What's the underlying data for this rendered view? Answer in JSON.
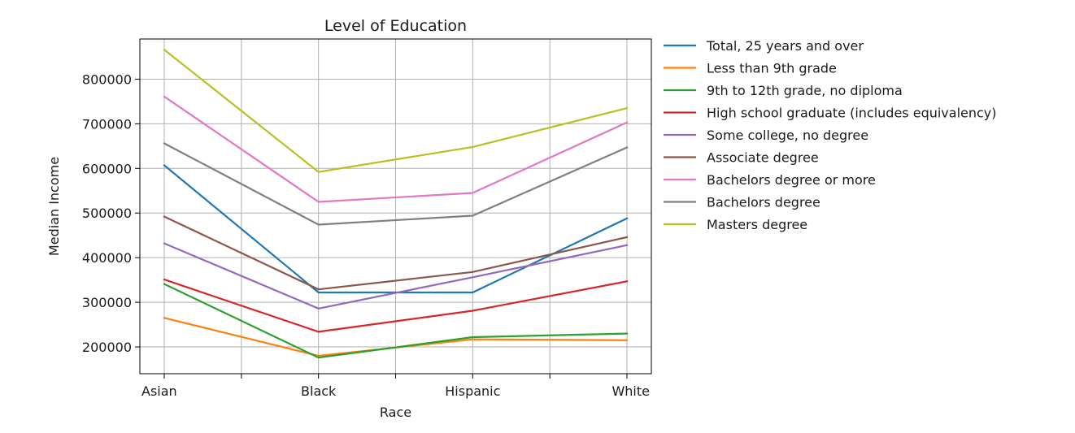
{
  "chart_data": {
    "type": "line",
    "title": "Level of Education",
    "xlabel": "Race",
    "ylabel": "Median Income",
    "categories": [
      "Asian",
      "Black",
      "Hispanic",
      "White"
    ],
    "ylim": [
      140000,
      890000
    ],
    "yticks": [
      200000,
      300000,
      400000,
      500000,
      600000,
      700000,
      800000
    ],
    "ytick_labels": [
      "200000",
      "300000",
      "400000",
      "500000",
      "600000",
      "700000",
      "800000"
    ],
    "grid": true,
    "legend_position": "outside right",
    "series": [
      {
        "name": "Total, 25 years and over",
        "color": "#1f77b4",
        "values": [
          607000,
          322000,
          322000,
          488000
        ]
      },
      {
        "name": "Less than 9th grade",
        "color": "#ff7f0e",
        "values": [
          265000,
          180000,
          217000,
          215000
        ]
      },
      {
        "name": "9th to 12th grade, no diploma",
        "color": "#2ca02c",
        "values": [
          341000,
          176000,
          222000,
          230000
        ]
      },
      {
        "name": "High school graduate (includes equivalency)",
        "color": "#d62728",
        "values": [
          351000,
          234000,
          281000,
          347000
        ]
      },
      {
        "name": "Some college, no degree",
        "color": "#9467bd",
        "values": [
          432000,
          286000,
          356000,
          428000
        ]
      },
      {
        "name": "Associate degree",
        "color": "#8c564b",
        "values": [
          492000,
          329000,
          368000,
          446000
        ]
      },
      {
        "name": "Bachelors degree or more",
        "color": "#e377c2",
        "values": [
          761000,
          525000,
          545000,
          703000
        ]
      },
      {
        "name": "Bachelors degree",
        "color": "#7f7f7f",
        "values": [
          656000,
          474000,
          494000,
          647000
        ]
      },
      {
        "name": "Masters degree",
        "color": "#bcbd22",
        "values": [
          866000,
          592000,
          648000,
          735000
        ]
      }
    ]
  }
}
